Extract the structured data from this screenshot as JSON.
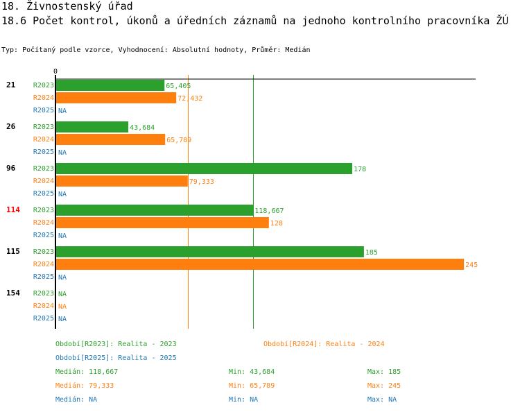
{
  "header": {
    "title1": "18. Živnostenský úřad",
    "title2": "18.6 Počet kontrol, úkonů a úředních záznamů na jednoho kontrolního pracovníka ŽÚ",
    "subtitle": "Typ: Počítaný podle vzorce, Vyhodnocení: Absolutní hodnoty, Průměr: Medián"
  },
  "colors": {
    "R2023": "#2ca02c",
    "R2024": "#ff7f0e",
    "R2025": "#1f77b4",
    "highlight": "#ff0000"
  },
  "chart_data": {
    "type": "bar",
    "orientation": "horizontal",
    "zero_label": "0",
    "xlim": [
      0,
      252
    ],
    "groups": [
      {
        "label": "21",
        "highlight": false
      },
      {
        "label": "26",
        "highlight": false
      },
      {
        "label": "96",
        "highlight": false
      },
      {
        "label": "114",
        "highlight": true
      },
      {
        "label": "115",
        "highlight": false
      },
      {
        "label": "154",
        "highlight": false
      }
    ],
    "series": [
      {
        "name": "R2023",
        "values": [
          65.405,
          43.684,
          178,
          118.667,
          185,
          null
        ],
        "labels": [
          "65,405",
          "43,684",
          "178",
          "118,667",
          "185",
          "NA"
        ]
      },
      {
        "name": "R2024",
        "values": [
          72.432,
          65.789,
          79.333,
          128,
          245,
          null
        ],
        "labels": [
          "72,432",
          "65,789",
          "79,333",
          "128",
          "245",
          "NA"
        ]
      },
      {
        "name": "R2025",
        "values": [
          null,
          null,
          null,
          null,
          null,
          null
        ],
        "labels": [
          "NA",
          "NA",
          "NA",
          "NA",
          "NA",
          "NA"
        ]
      }
    ],
    "median_lines": [
      {
        "series": "R2023",
        "value": 118.667
      },
      {
        "series": "R2024",
        "value": 79.333
      }
    ]
  },
  "legend": {
    "period_2023": "Období[R2023]: Realita - 2023",
    "period_2024": "Období[R2024]: Realita - 2024",
    "period_2025": "Období[R2025]: Realita - 2025",
    "stats": [
      {
        "series": "R2023",
        "median": "Medián: 118,667",
        "min": "Min: 43,684",
        "max": "Max: 185"
      },
      {
        "series": "R2024",
        "median": "Medián: 79,333",
        "min": "Min: 65,789",
        "max": "Max: 245"
      },
      {
        "series": "R2025",
        "median": "Medián: NA",
        "min": "Min: NA",
        "max": "Max: NA"
      }
    ]
  }
}
